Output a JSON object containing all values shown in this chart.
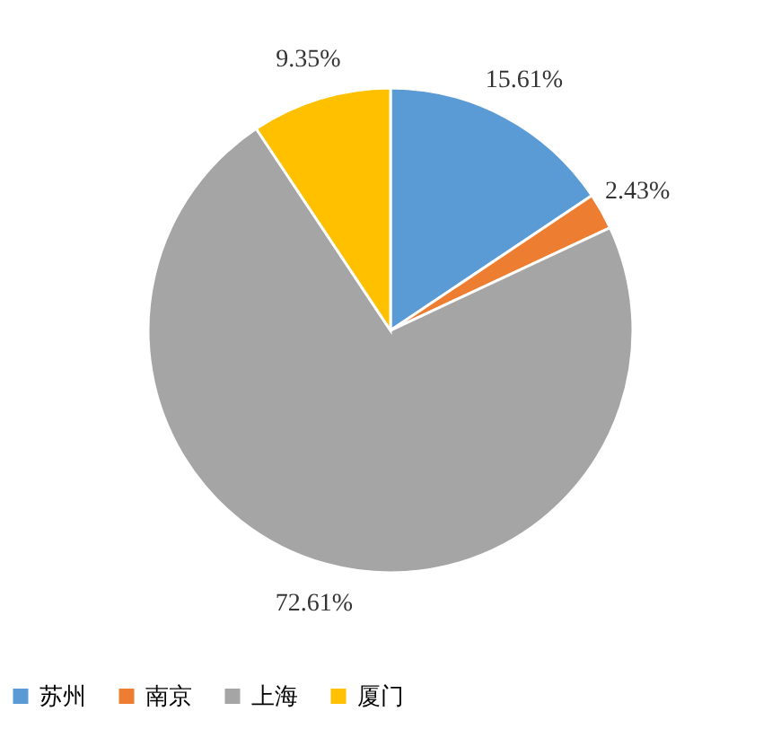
{
  "chart_data": {
    "type": "pie",
    "categories": [
      "苏州",
      "南京",
      "上海",
      "厦门"
    ],
    "values": [
      15.61,
      2.43,
      72.61,
      9.35
    ],
    "colors": [
      "#5b9bd5",
      "#ed7d31",
      "#a5a5a5",
      "#ffc000"
    ],
    "value_labels": [
      "15.61%",
      "2.43%",
      "72.61%",
      "9.35%"
    ],
    "legend": "bottom"
  }
}
